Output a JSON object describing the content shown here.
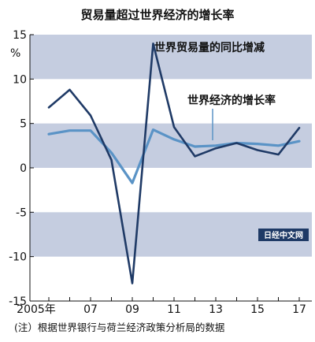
{
  "chart_data": {
    "type": "line",
    "title": "贸易量超过世界经济的增长率",
    "unit_label": "%",
    "x": [
      2005,
      2006,
      2007,
      2008,
      2009,
      2010,
      2011,
      2012,
      2013,
      2014,
      2015,
      2016,
      2017
    ],
    "x_tick_labels": [
      {
        "x": 2005,
        "label": "2005年"
      },
      {
        "x": 2007,
        "label": "07"
      },
      {
        "x": 2009,
        "label": "09"
      },
      {
        "x": 2011,
        "label": "11"
      },
      {
        "x": 2013,
        "label": "13"
      },
      {
        "x": 2015,
        "label": "15"
      },
      {
        "x": 2017,
        "label": "17"
      }
    ],
    "y_ticks": [
      15,
      10,
      5,
      0,
      -5,
      -10,
      -15
    ],
    "ylim": [
      -15,
      15
    ],
    "series": [
      {
        "name": "世界贸易量的同比增减",
        "color": "#1f3a66",
        "values": [
          6.8,
          8.8,
          5.9,
          0.9,
          -13.0,
          14.0,
          4.6,
          1.3,
          2.2,
          2.8,
          2.0,
          1.5,
          4.5
        ]
      },
      {
        "name": "世界经济的增长率",
        "color": "#5a93c6",
        "values": [
          3.8,
          4.2,
          4.2,
          1.7,
          -1.7,
          4.3,
          3.2,
          2.4,
          2.5,
          2.8,
          2.7,
          2.5,
          3.0
        ]
      }
    ],
    "bands": [
      [
        10,
        15
      ],
      [
        0,
        5
      ],
      [
        -10,
        -5
      ]
    ],
    "band_color": "#c5cde0",
    "grid": false
  },
  "footnote": "(注）根据世界银行与荷兰经济政策分析局的数据",
  "watermark": "日经中文网"
}
